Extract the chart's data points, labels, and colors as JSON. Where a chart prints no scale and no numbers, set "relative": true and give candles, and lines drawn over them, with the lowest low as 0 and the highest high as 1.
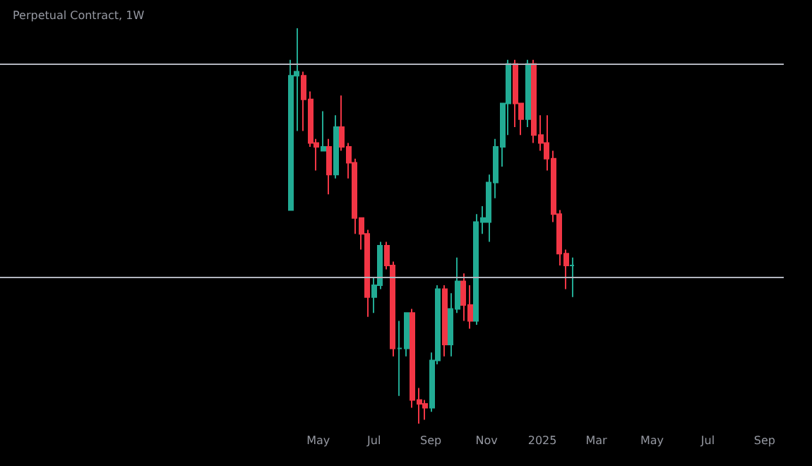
{
  "chart_data": {
    "type": "candlestick",
    "title": "Perpetual Contract, 1W",
    "relative": true,
    "x": [
      "2024-04-01",
      "2024-04-08",
      "2024-04-15",
      "2024-04-22",
      "2024-04-29",
      "2024-05-06",
      "2024-05-13",
      "2024-05-20",
      "2024-05-27",
      "2024-06-03",
      "2024-06-10",
      "2024-06-17",
      "2024-06-24",
      "2024-07-01",
      "2024-07-08",
      "2024-07-15",
      "2024-07-22",
      "2024-07-29",
      "2024-08-05",
      "2024-08-12",
      "2024-08-19",
      "2024-08-26",
      "2024-09-02",
      "2024-09-09",
      "2024-09-16",
      "2024-09-23",
      "2024-09-30",
      "2024-10-07",
      "2024-10-14",
      "2024-10-21",
      "2024-10-28",
      "2024-11-04",
      "2024-11-11",
      "2024-11-18",
      "2024-11-25",
      "2024-12-02",
      "2024-12-09",
      "2024-12-16",
      "2024-12-23",
      "2024-12-30",
      "2025-01-06",
      "2025-01-13",
      "2025-01-20",
      "2025-01-27",
      "2025-02-03"
    ],
    "ohlc": [
      [
        0.54,
        0.92,
        0.54,
        0.88
      ],
      [
        0.88,
        1.0,
        0.74,
        0.89
      ],
      [
        0.88,
        0.89,
        0.74,
        0.82
      ],
      [
        0.82,
        0.84,
        0.7,
        0.71
      ],
      [
        0.71,
        0.72,
        0.64,
        0.7
      ],
      [
        0.69,
        0.79,
        0.69,
        0.7
      ],
      [
        0.7,
        0.72,
        0.58,
        0.63
      ],
      [
        0.63,
        0.78,
        0.62,
        0.75
      ],
      [
        0.75,
        0.83,
        0.69,
        0.7
      ],
      [
        0.7,
        0.71,
        0.62,
        0.66
      ],
      [
        0.66,
        0.67,
        0.48,
        0.52
      ],
      [
        0.52,
        0.52,
        0.44,
        0.48
      ],
      [
        0.48,
        0.49,
        0.27,
        0.32
      ],
      [
        0.32,
        0.37,
        0.28,
        0.35
      ],
      [
        0.35,
        0.46,
        0.34,
        0.45
      ],
      [
        0.45,
        0.46,
        0.39,
        0.4
      ],
      [
        0.4,
        0.41,
        0.17,
        0.19
      ],
      [
        0.19,
        0.26,
        0.07,
        0.19
      ],
      [
        0.19,
        0.28,
        0.17,
        0.28
      ],
      [
        0.28,
        0.29,
        0.04,
        0.06
      ],
      [
        0.06,
        0.09,
        0.0,
        0.05
      ],
      [
        0.05,
        0.06,
        0.01,
        0.04
      ],
      [
        0.04,
        0.18,
        0.03,
        0.16
      ],
      [
        0.16,
        0.35,
        0.15,
        0.34
      ],
      [
        0.34,
        0.35,
        0.17,
        0.2
      ],
      [
        0.2,
        0.33,
        0.17,
        0.29
      ],
      [
        0.29,
        0.42,
        0.28,
        0.36
      ],
      [
        0.36,
        0.38,
        0.26,
        0.3
      ],
      [
        0.3,
        0.35,
        0.24,
        0.26
      ],
      [
        0.26,
        0.53,
        0.25,
        0.51
      ],
      [
        0.51,
        0.55,
        0.48,
        0.52
      ],
      [
        0.51,
        0.63,
        0.46,
        0.61
      ],
      [
        0.61,
        0.72,
        0.57,
        0.7
      ],
      [
        0.7,
        0.81,
        0.65,
        0.81
      ],
      [
        0.81,
        0.92,
        0.73,
        0.91
      ],
      [
        0.91,
        0.92,
        0.75,
        0.81
      ],
      [
        0.81,
        0.81,
        0.73,
        0.77
      ],
      [
        0.77,
        0.92,
        0.75,
        0.91
      ],
      [
        0.91,
        0.92,
        0.71,
        0.73
      ],
      [
        0.73,
        0.78,
        0.69,
        0.71
      ],
      [
        0.71,
        0.78,
        0.64,
        0.67
      ],
      [
        0.67,
        0.69,
        0.51,
        0.53
      ],
      [
        0.53,
        0.54,
        0.4,
        0.43
      ],
      [
        0.43,
        0.44,
        0.34,
        0.4
      ],
      [
        0.4,
        0.42,
        0.32,
        0.4
      ]
    ],
    "colors": [
      "#22ab94",
      "#22ab94",
      "#f23645",
      "#f23645",
      "#f23645",
      "#22ab94",
      "#f23645",
      "#22ab94",
      "#f23645",
      "#f23645",
      "#f23645",
      "#f23645",
      "#f23645",
      "#22ab94",
      "#22ab94",
      "#f23645",
      "#f23645",
      "#22ab94",
      "#22ab94",
      "#f23645",
      "#f23645",
      "#f23645",
      "#22ab94",
      "#22ab94",
      "#f23645",
      "#22ab94",
      "#22ab94",
      "#f23645",
      "#f23645",
      "#22ab94",
      "#22ab94",
      "#22ab94",
      "#22ab94",
      "#22ab94",
      "#22ab94",
      "#f23645",
      "#f23645",
      "#22ab94",
      "#f23645",
      "#f23645",
      "#f23645",
      "#f23645",
      "#f23645",
      "#f23645",
      "#22ab94"
    ],
    "xlim": [
      "2023-05-19",
      "2025-09-22"
    ],
    "xticks": [
      {
        "value": "2024-05-01",
        "label": "May"
      },
      {
        "value": "2024-07-01",
        "label": "Jul"
      },
      {
        "value": "2024-09-01",
        "label": "Sep"
      },
      {
        "value": "2024-11-01",
        "label": "Nov"
      },
      {
        "value": "2025-01-01",
        "label": "2025"
      },
      {
        "value": "2025-03-01",
        "label": "Mar"
      },
      {
        "value": "2025-05-01",
        "label": "May"
      },
      {
        "value": "2025-07-01",
        "label": "Jul"
      },
      {
        "value": "2025-09-01",
        "label": "Sep"
      }
    ],
    "ref_lines": [
      {
        "axis": "y",
        "value": 0.91,
        "color": "#b2b5be"
      },
      {
        "axis": "y",
        "value": 0.37,
        "color": "#b2b5be"
      }
    ],
    "grid": false
  }
}
